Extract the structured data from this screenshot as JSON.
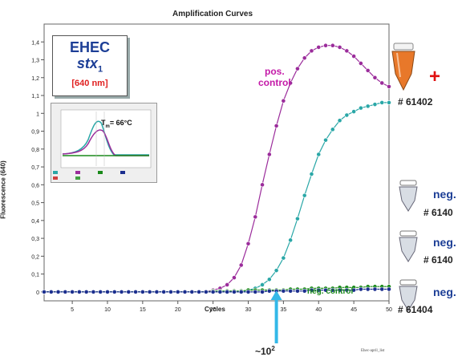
{
  "chart_data": {
    "type": "line",
    "title": "Amplification Curves",
    "xlabel": "Cycles",
    "ylabel": "Fluorescence (640)",
    "xlim": [
      1,
      50
    ],
    "ylim": [
      -0.05,
      1.5
    ],
    "x_ticks": [
      5,
      10,
      15,
      20,
      25,
      30,
      35,
      40,
      45,
      50
    ],
    "y_ticks": [
      0,
      0.1,
      0.2,
      0.3,
      0.4,
      0.5,
      0.6,
      0.7,
      0.8,
      0.9,
      1,
      1.1,
      1.2,
      1.3,
      1.4
    ],
    "x_tick_labels": [
      "5",
      "10",
      "15",
      "20",
      "25",
      "30",
      "35",
      "40",
      "45",
      "50"
    ],
    "y_tick_labels": [
      "0",
      "0,1",
      "0,2",
      "0,3",
      "0,4",
      "0,5",
      "0,6",
      "0,7",
      "0,8",
      "0,9",
      "1",
      "1,1",
      "1,2",
      "1,3",
      "1,4"
    ],
    "grid": false,
    "x": [
      1,
      2,
      3,
      4,
      5,
      6,
      7,
      8,
      9,
      10,
      11,
      12,
      13,
      14,
      15,
      16,
      17,
      18,
      19,
      20,
      21,
      22,
      23,
      24,
      25,
      26,
      27,
      28,
      29,
      30,
      31,
      32,
      33,
      34,
      35,
      36,
      37,
      38,
      39,
      40,
      41,
      42,
      43,
      44,
      45,
      46,
      47,
      48,
      49,
      50
    ],
    "series": [
      {
        "color": "#9b2c9b",
        "values": [
          0,
          0,
          0,
          0,
          0,
          0,
          0,
          0,
          0,
          0,
          0,
          0,
          0,
          0,
          0,
          0,
          0,
          0,
          0,
          0,
          0,
          0,
          0,
          0,
          0.01,
          0.02,
          0.04,
          0.08,
          0.15,
          0.27,
          0.42,
          0.6,
          0.77,
          0.93,
          1.07,
          1.17,
          1.25,
          1.31,
          1.35,
          1.37,
          1.38,
          1.38,
          1.37,
          1.35,
          1.32,
          1.28,
          1.24,
          1.2,
          1.17,
          1.15
        ]
      },
      {
        "color": "#2aa7a7",
        "values": [
          0,
          0,
          0,
          0,
          0,
          0,
          0,
          0,
          0,
          0,
          0,
          0,
          0,
          0,
          0,
          0,
          0,
          0,
          0,
          0,
          0,
          0,
          0,
          0,
          0,
          0,
          0,
          0,
          0,
          0.01,
          0.02,
          0.04,
          0.07,
          0.12,
          0.19,
          0.29,
          0.41,
          0.54,
          0.66,
          0.77,
          0.85,
          0.91,
          0.96,
          0.99,
          1.01,
          1.03,
          1.04,
          1.05,
          1.06,
          1.06
        ]
      },
      {
        "color": "#1a8a1a",
        "values": [
          0,
          0,
          0,
          0,
          0,
          0,
          0,
          0,
          0,
          0,
          0,
          0,
          0,
          0,
          0,
          0,
          0,
          0,
          0,
          0,
          0,
          0,
          0,
          0,
          0.005,
          0.005,
          0.005,
          0.005,
          0.005,
          0.01,
          0.01,
          0.01,
          0.01,
          0.01,
          0.01,
          0.015,
          0.015,
          0.015,
          0.02,
          0.02,
          0.02,
          0.02,
          0.025,
          0.025,
          0.025,
          0.025,
          0.03,
          0.03,
          0.03,
          0.03
        ]
      },
      {
        "color": "#1c2f8f",
        "values": [
          0,
          0,
          0,
          0,
          0,
          0,
          0,
          0,
          0,
          0,
          0,
          0,
          0,
          0,
          0,
          0,
          0,
          0,
          0,
          0,
          0,
          0,
          0,
          0,
          0,
          0,
          0,
          0,
          0,
          0,
          0,
          0,
          0.005,
          0.005,
          0.005,
          0.005,
          0.005,
          0.005,
          0.01,
          0.01,
          0.01,
          0.01,
          0.01,
          0.01,
          0.01,
          0.015,
          0.015,
          0.015,
          0.015,
          0.015
        ]
      }
    ]
  },
  "assay": {
    "name": "EHEC",
    "gene": "stx",
    "gene_sub": "1",
    "wavelength": "[640 nm]",
    "tm_label": "T",
    "tm_sub": "m",
    "tm_value": "= 66°C"
  },
  "annotations": {
    "pos_control_line1": "pos.",
    "pos_control_line2": "control",
    "neg_control": "neg. control",
    "copies": "~10",
    "copies_exp": "2",
    "footnote": "Ehec-april_list",
    "plus": "+"
  },
  "samples": [
    {
      "result": "",
      "id": "# 61402",
      "tube_color": "#e8782a"
    },
    {
      "result": "neg.",
      "id": "# 6140",
      "tube_color": "#d8dde4"
    },
    {
      "result": "neg.",
      "id": "# 6140",
      "tube_color": "#d8dde4"
    },
    {
      "result": "neg.",
      "id": "# 61404",
      "tube_color": "#d8dde4"
    }
  ],
  "colors": {
    "plot_background": "#ffffff",
    "window_background": "#ffffff",
    "arrow": "#33b8e8"
  }
}
